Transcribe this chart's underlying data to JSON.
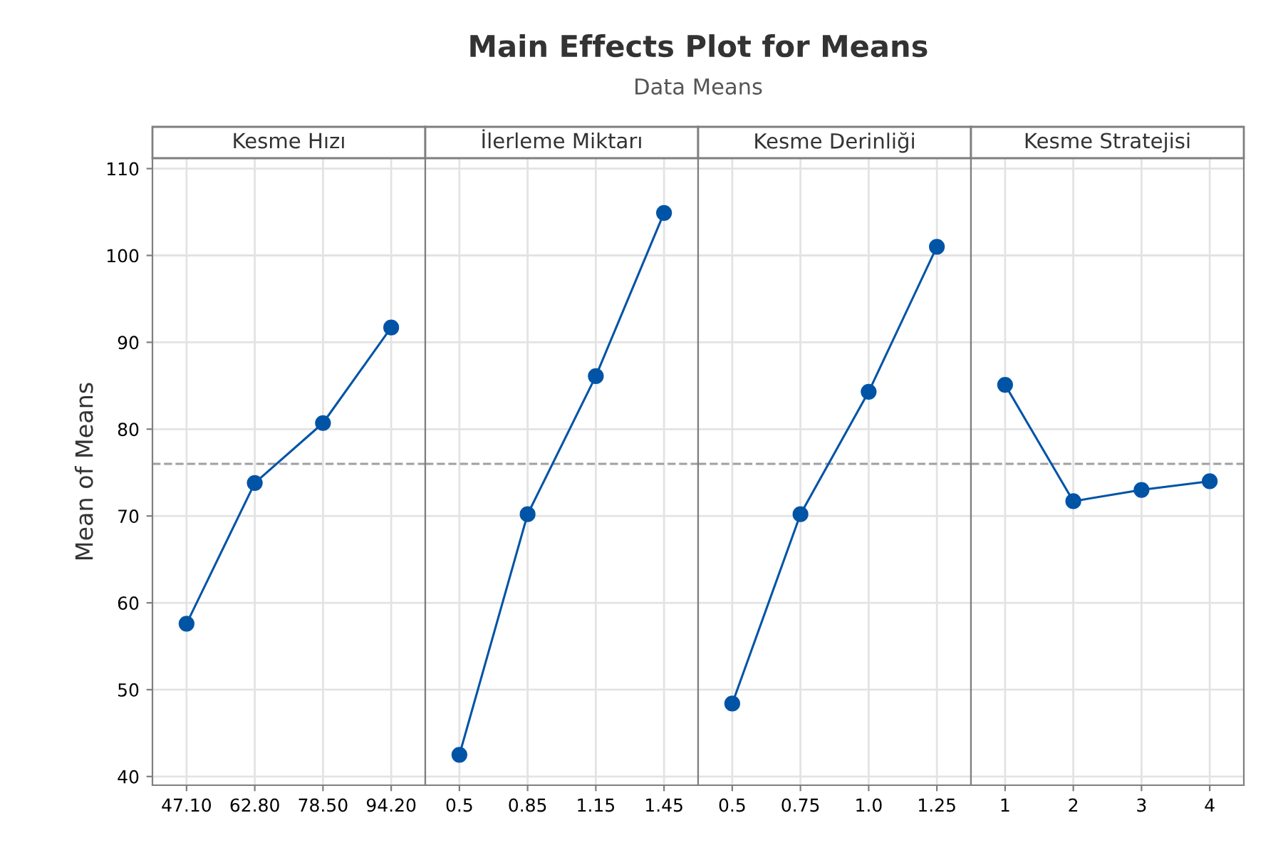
{
  "chart_data": [
    {
      "type": "other",
      "title": "Main Effects Plot for Means",
      "subtitle": "Data Means"
    },
    {
      "type": "line",
      "xlabel": "Kesme Hızı",
      "ylabel": "Mean of Means",
      "categories": [
        "47.10",
        "62.80",
        "78.50",
        "94.20"
      ],
      "series": [
        {
          "color": "#0054a6",
          "values": [
            57.6,
            73.8,
            80.7,
            91.7
          ]
        }
      ],
      "ylim": [
        39,
        111.2
      ],
      "yticks": [
        40,
        50,
        60,
        70,
        80,
        90,
        100,
        110
      ],
      "grid": true,
      "marker": "circle",
      "line_style": "solid",
      "ref_lines": [
        {
          "axis": "y",
          "value": 76,
          "color": "#a0a0a0",
          "line_style": "dashed"
        }
      ]
    },
    {
      "type": "line",
      "xlabel": "İlerleme Miktarı",
      "categories": [
        "0.5",
        "0.85",
        "1.15",
        "1.45"
      ],
      "series": [
        {
          "color": "#0054a6",
          "values": [
            42.5,
            70.2,
            86.1,
            104.9
          ]
        }
      ],
      "ylim": [
        39,
        111.2
      ],
      "tick_labels": "x",
      "grid": true,
      "marker": "circle",
      "line_style": "solid",
      "ref_lines": [
        {
          "axis": "y",
          "value": 76,
          "color": "#a0a0a0",
          "line_style": "dashed"
        }
      ]
    },
    {
      "type": "line",
      "xlabel": "Kesme Derinliği",
      "categories": [
        "0.5",
        "0.75",
        "1.0",
        "1.25"
      ],
      "series": [
        {
          "color": "#0054a6",
          "values": [
            48.4,
            70.2,
            84.3,
            101.0
          ]
        }
      ],
      "ylim": [
        39,
        111.2
      ],
      "tick_labels": "x",
      "grid": true,
      "marker": "circle",
      "line_style": "solid",
      "ref_lines": [
        {
          "axis": "y",
          "value": 76,
          "color": "#a0a0a0",
          "line_style": "dashed"
        }
      ]
    },
    {
      "type": "line",
      "xlabel": "Kesme Stratejisi",
      "categories": [
        "1",
        "2",
        "3",
        "4"
      ],
      "series": [
        {
          "color": "#0054a6",
          "values": [
            85.1,
            71.7,
            73.0,
            74.0
          ]
        }
      ],
      "ylim": [
        39,
        111.2
      ],
      "tick_labels": "x",
      "grid": true,
      "marker": "circle",
      "line_style": "solid",
      "ref_lines": [
        {
          "axis": "y",
          "value": 76,
          "color": "#a0a0a0",
          "line_style": "dashed"
        }
      ]
    }
  ]
}
